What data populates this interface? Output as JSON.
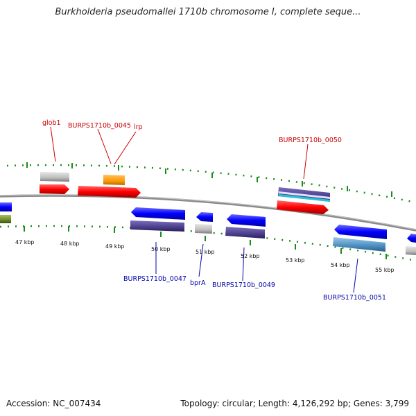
{
  "title": "Burkholderia pseudomallei 1710b chromosome I, complete seque...",
  "footer": {
    "accession": "Accession: NC_007434",
    "stats": "Topology: circular; Length: 4,126,292 bp; Genes: 3,799"
  },
  "colors": {
    "forward_gene": "#ff0000",
    "reverse_gene": "#0000ff",
    "grey_feature": "#bdbdbd",
    "orange_feature": "#ff9900",
    "purple_feature": "#4b3f8c",
    "teal_feature": "#4a8fc0",
    "tick": "#1a8a1a",
    "backbone": "#8a8a8a",
    "label_forward": "#cc0000",
    "label_reverse": "#0000aa"
  },
  "ticks": [
    "47 kbp",
    "48 kbp",
    "49 kbp",
    "50 kbp",
    "51 kbp",
    "52 kbp",
    "53 kbp",
    "54 kbp",
    "55 kbp"
  ],
  "gene_labels": [
    {
      "text": "glob1",
      "strand": "forward"
    },
    {
      "text": "BURPS1710b_0045",
      "strand": "forward"
    },
    {
      "text": "lrp",
      "strand": "forward"
    },
    {
      "text": "BURPS1710b_0050",
      "strand": "forward"
    },
    {
      "text": "BURPS1710b_0047",
      "strand": "reverse"
    },
    {
      "text": "bprA",
      "strand": "reverse"
    },
    {
      "text": "BURPS1710b_0049",
      "strand": "reverse"
    },
    {
      "text": "BURPS1710b_0051",
      "strand": "reverse"
    }
  ]
}
